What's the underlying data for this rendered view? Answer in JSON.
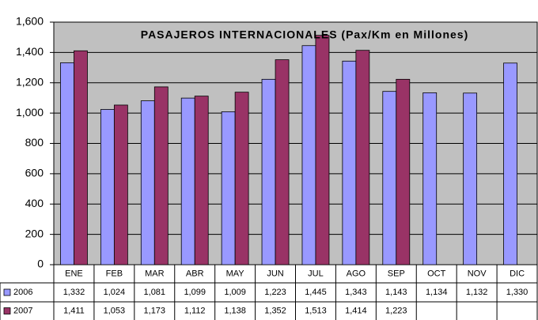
{
  "chart_data": {
    "type": "bar",
    "title": "PASAJEROS INTERNACIONALES (Pax/Km en Millones)",
    "categories": [
      "ENE",
      "FEB",
      "MAR",
      "ABR",
      "MAY",
      "JUN",
      "JUL",
      "AGO",
      "SEP",
      "OCT",
      "NOV",
      "DIC"
    ],
    "series": [
      {
        "name": "2006",
        "color": "#9999ff",
        "values": [
          1332,
          1024,
          1081,
          1099,
          1009,
          1223,
          1445,
          1343,
          1143,
          1134,
          1132,
          1330
        ],
        "value_labels": [
          "1,332",
          "1,024",
          "1,081",
          "1,099",
          "1,009",
          "1,223",
          "1,445",
          "1,343",
          "1,143",
          "1,134",
          "1,132",
          "1,330"
        ]
      },
      {
        "name": "2007",
        "color": "#993366",
        "values": [
          1411,
          1053,
          1173,
          1112,
          1138,
          1352,
          1513,
          1414,
          1223,
          null,
          null,
          null
        ],
        "value_labels": [
          "1,411",
          "1,053",
          "1,173",
          "1,112",
          "1,138",
          "1,352",
          "1,513",
          "1,414",
          "1,223",
          null,
          null,
          null
        ]
      }
    ],
    "ylim": [
      0,
      1600
    ],
    "yticks": [
      0,
      200,
      400,
      600,
      800,
      {
        "value": 1000,
        "label": "1,000"
      },
      {
        "value": 1200,
        "label": "1,200"
      },
      {
        "value": 1400,
        "label": "1,400"
      },
      {
        "value": 1600,
        "label": "1,600"
      }
    ],
    "grid": true,
    "plot_background": "#c0c0c0"
  }
}
